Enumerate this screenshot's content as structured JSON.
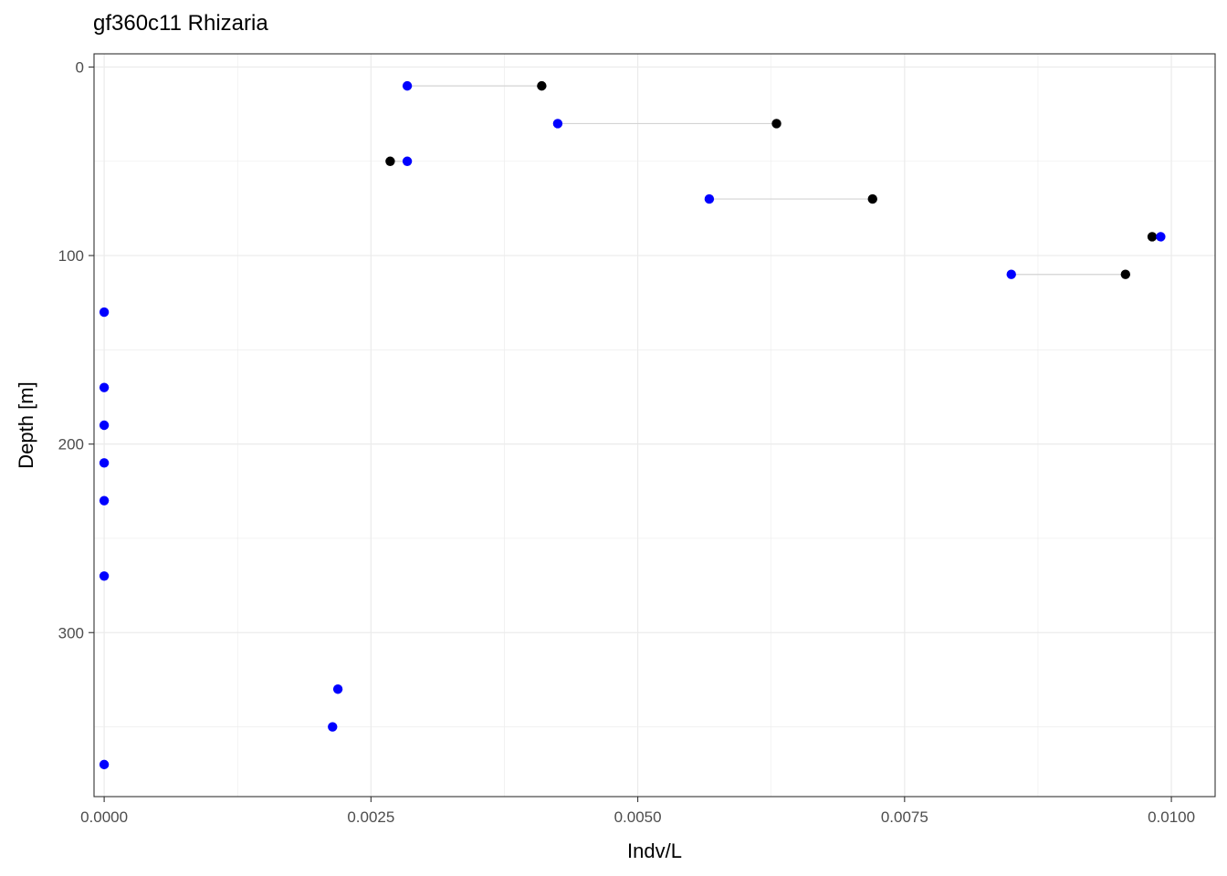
{
  "chart_data": {
    "type": "scatter",
    "title": "gf360c11 Rhizaria",
    "xlabel": "Indv/L",
    "ylabel": "Depth [m]",
    "xlim": [
      -9.5e-05,
      0.01041
    ],
    "ylim": [
      -7,
      387
    ],
    "y_reversed": true,
    "grid": true,
    "legend": "none",
    "x_ticks": [
      0,
      0.0025,
      0.005,
      0.0075,
      0.01
    ],
    "x_tick_labels": [
      "0.0000",
      "0.0025",
      "0.0050",
      "0.0075",
      "0.0100"
    ],
    "y_ticks": [
      0,
      100,
      200,
      300
    ],
    "y_tick_labels": [
      "0",
      "100",
      "200",
      "300"
    ],
    "colors": {
      "series_a": "#000000",
      "series_b": "#0000ff",
      "segment": "#d3d3d3",
      "grid": "#ebebeb",
      "panel_border": "#333333"
    },
    "series": [
      {
        "color": "#000000",
        "points": [
          {
            "x": 0.0041,
            "y": 10
          },
          {
            "x": 0.0063,
            "y": 30
          },
          {
            "x": 0.00268,
            "y": 50
          },
          {
            "x": 0.0072,
            "y": 70
          },
          {
            "x": 0.00982,
            "y": 90
          },
          {
            "x": 0.00957,
            "y": 110
          }
        ]
      },
      {
        "color": "#0000ff",
        "points": [
          {
            "x": 0.00284,
            "y": 10
          },
          {
            "x": 0.00425,
            "y": 30
          },
          {
            "x": 0.00284,
            "y": 50
          },
          {
            "x": 0.00567,
            "y": 70
          },
          {
            "x": 0.0099,
            "y": 90
          },
          {
            "x": 0.0085,
            "y": 110
          },
          {
            "x": 0.0,
            "y": 130
          },
          {
            "x": 0.0,
            "y": 170
          },
          {
            "x": 0.0,
            "y": 190
          },
          {
            "x": 0.0,
            "y": 210
          },
          {
            "x": 0.0,
            "y": 230
          },
          {
            "x": 0.0,
            "y": 270
          },
          {
            "x": 0.00219,
            "y": 330
          },
          {
            "x": 0.00214,
            "y": 350
          },
          {
            "x": 0.0,
            "y": 370
          }
        ]
      }
    ],
    "segments": [
      {
        "x1": 0.00284,
        "x2": 0.0041,
        "y": 10
      },
      {
        "x1": 0.00425,
        "x2": 0.0063,
        "y": 30
      },
      {
        "x1": 0.00268,
        "x2": 0.00284,
        "y": 50
      },
      {
        "x1": 0.00567,
        "x2": 0.0072,
        "y": 70
      },
      {
        "x1": 0.00982,
        "x2": 0.0099,
        "y": 90
      },
      {
        "x1": 0.0085,
        "x2": 0.00957,
        "y": 110
      }
    ]
  }
}
